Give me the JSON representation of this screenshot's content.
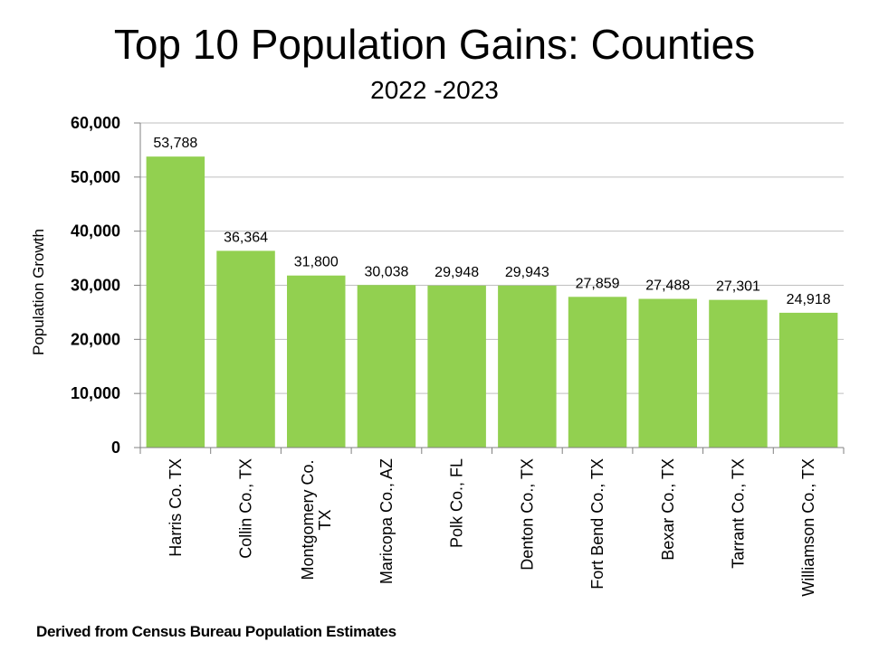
{
  "chart_data": {
    "type": "bar",
    "title": "Top 10 Population Gains: Counties",
    "subtitle": "2022 -2023",
    "ylabel": "Population Growth",
    "xlabel": "",
    "ylim": [
      0,
      60000
    ],
    "yticks": [
      "0",
      "10,000",
      "20,000",
      "30,000",
      "40,000",
      "50,000",
      "60,000"
    ],
    "ytick_values": [
      0,
      10000,
      20000,
      30000,
      40000,
      50000,
      60000
    ],
    "grid": true,
    "legend": "none",
    "bar_color": "#92d050",
    "categories": [
      [
        "Harris Co. TX"
      ],
      [
        "Collin Co., TX"
      ],
      [
        "Montgomery Co.",
        "TX"
      ],
      [
        "Maricopa Co., AZ"
      ],
      [
        "Polk Co., FL"
      ],
      [
        "Denton Co., TX"
      ],
      [
        "Fort Bend Co., TX"
      ],
      [
        "Bexar Co., TX"
      ],
      [
        "Tarrant Co., TX"
      ],
      [
        "Williamson Co., TX"
      ]
    ],
    "values": [
      53788,
      36364,
      31800,
      30038,
      29948,
      29943,
      27859,
      27488,
      27301,
      24918
    ],
    "data_labels": [
      "53,788",
      "36,364",
      "31,800",
      "30,038",
      "29,948",
      "29,943",
      "27,859",
      "27,488",
      "27,301",
      "24,918"
    ]
  },
  "source_note": "Derived from Census Bureau Population Estimates"
}
